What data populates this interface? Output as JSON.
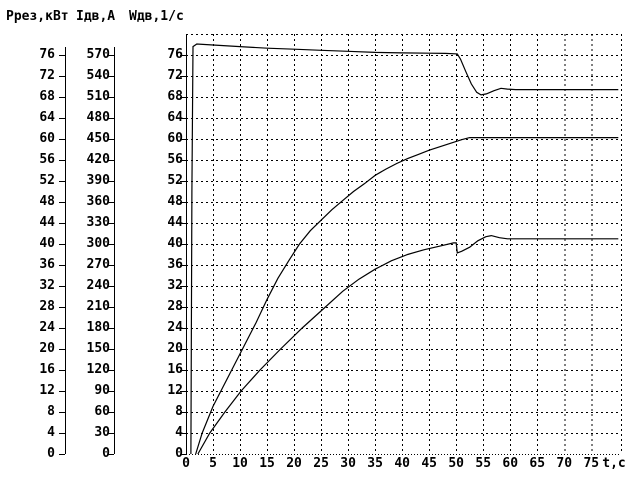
{
  "window": {
    "background": "#ffffff",
    "foreground": "#000000"
  },
  "chart_data": {
    "type": "line",
    "title": "",
    "grid": "dashed",
    "legend": "none",
    "x_axis": {
      "label": "t,c",
      "min": 0,
      "max": 80.5,
      "tick_step": 5,
      "ticks": [
        0,
        5,
        10,
        15,
        20,
        25,
        30,
        35,
        40,
        45,
        50,
        55,
        60,
        65,
        70,
        75
      ]
    },
    "y_axes": [
      {
        "id": "p",
        "title": "Ррез,кВт",
        "min": 0,
        "max": 80,
        "tick_step": 4,
        "ticks": [
          76,
          72,
          68,
          64,
          60,
          56,
          52,
          48,
          44,
          40,
          36,
          32,
          28,
          24,
          20,
          16,
          12,
          8,
          4,
          0
        ]
      },
      {
        "id": "i",
        "title": "Iдв,А",
        "min": 0,
        "max": 600,
        "tick_step": 30,
        "ticks": [
          570,
          540,
          510,
          480,
          450,
          420,
          390,
          360,
          330,
          300,
          270,
          240,
          210,
          180,
          150,
          120,
          90,
          60,
          30,
          0
        ]
      },
      {
        "id": "w",
        "title": "Wдв,1/с",
        "min": 0,
        "max": 80,
        "tick_step": 4,
        "ticks": [
          76,
          72,
          68,
          64,
          60,
          56,
          52,
          48,
          44,
          40,
          36,
          32,
          28,
          24,
          20,
          16,
          12,
          8,
          4,
          0
        ]
      }
    ],
    "series": [
      {
        "name": "Wдв,1/с",
        "axis": "w",
        "color": "#000000",
        "points": [
          [
            0.9,
            0
          ],
          [
            1.1,
            50
          ],
          [
            1.3,
            77.6
          ],
          [
            2,
            78.1
          ],
          [
            5,
            77.9
          ],
          [
            10,
            77.6
          ],
          [
            15,
            77.3
          ],
          [
            20,
            77.1
          ],
          [
            25,
            76.9
          ],
          [
            30,
            76.7
          ],
          [
            35,
            76.5
          ],
          [
            40,
            76.4
          ],
          [
            45,
            76.35
          ],
          [
            48,
            76.3
          ],
          [
            50.2,
            76.2
          ],
          [
            50.8,
            75.2
          ],
          [
            51.8,
            72.8
          ],
          [
            52.8,
            70.5
          ],
          [
            53.8,
            68.9
          ],
          [
            54.6,
            68.4
          ],
          [
            55.6,
            68.6
          ],
          [
            57,
            69.2
          ],
          [
            58.3,
            69.65
          ],
          [
            59.5,
            69.5
          ],
          [
            61,
            69.4
          ],
          [
            70,
            69.4
          ],
          [
            80,
            69.4
          ]
        ]
      },
      {
        "name": "Iдв,А",
        "axis": "i",
        "color": "#000000",
        "points": [
          [
            1.8,
            0
          ],
          [
            3,
            30
          ],
          [
            5,
            68
          ],
          [
            7,
            98
          ],
          [
            9,
            128
          ],
          [
            11,
            158
          ],
          [
            13,
            188
          ],
          [
            15,
            221
          ],
          [
            17,
            251
          ],
          [
            19,
            276
          ],
          [
            21,
            300
          ],
          [
            23,
            319
          ],
          [
            25,
            334
          ],
          [
            27,
            349
          ],
          [
            29,
            362
          ],
          [
            31,
            375
          ],
          [
            33,
            386
          ],
          [
            35,
            398
          ],
          [
            37,
            407
          ],
          [
            39,
            415
          ],
          [
            41,
            422
          ],
          [
            43,
            428
          ],
          [
            45,
            434
          ],
          [
            47,
            439
          ],
          [
            49,
            444
          ],
          [
            51,
            449
          ],
          [
            52.5,
            452
          ],
          [
            54,
            452
          ],
          [
            60,
            452
          ],
          [
            70,
            452
          ],
          [
            80,
            452
          ]
        ]
      },
      {
        "name": "Ррез,кВт",
        "axis": "p",
        "color": "#000000",
        "points": [
          [
            2.2,
            0
          ],
          [
            4.4,
            4
          ],
          [
            7.2,
            8
          ],
          [
            10.2,
            12
          ],
          [
            13.7,
            16
          ],
          [
            17.5,
            20
          ],
          [
            21.5,
            24
          ],
          [
            25.8,
            28
          ],
          [
            29,
            31
          ],
          [
            32,
            33.3
          ],
          [
            35,
            35.2
          ],
          [
            38,
            36.8
          ],
          [
            41,
            38
          ],
          [
            44,
            38.9
          ],
          [
            47,
            39.6
          ],
          [
            49.5,
            40.2
          ],
          [
            50,
            40.2
          ],
          [
            50.2,
            38.3
          ],
          [
            51,
            38.6
          ],
          [
            52.5,
            39.4
          ],
          [
            54,
            40.6
          ],
          [
            55.5,
            41.4
          ],
          [
            56.5,
            41.6
          ],
          [
            58,
            41.2
          ],
          [
            59.5,
            41.0
          ],
          [
            65,
            41.0
          ],
          [
            75,
            41.0
          ],
          [
            80,
            41.0
          ]
        ]
      }
    ]
  }
}
